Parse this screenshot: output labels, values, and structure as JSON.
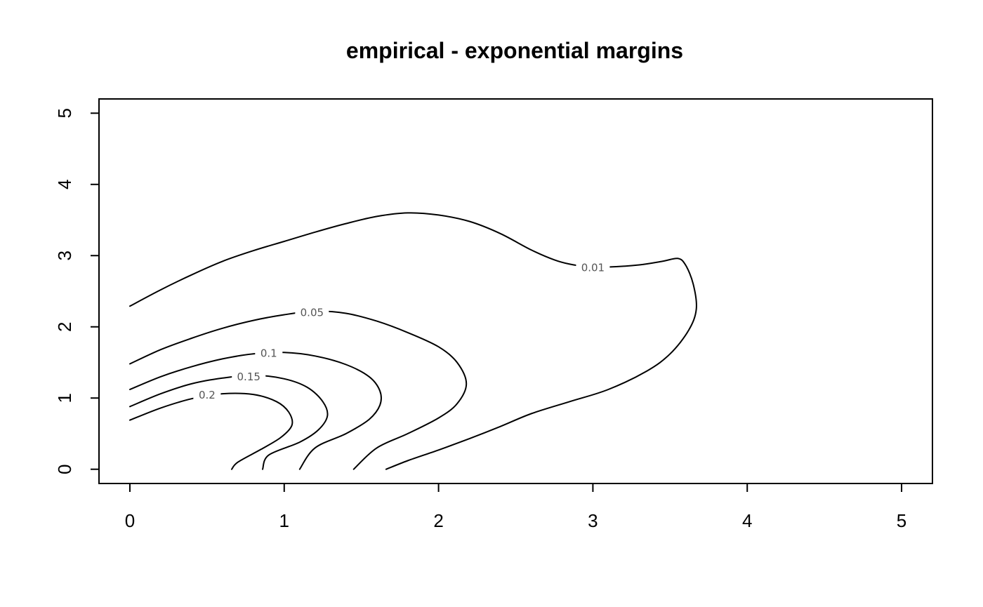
{
  "chart_data": {
    "type": "contour",
    "title": "empirical - exponential margins",
    "xlabel": "",
    "ylabel": "",
    "xlim": [
      -0.2,
      5.2
    ],
    "ylim": [
      -0.2,
      5.2
    ],
    "x_ticks": [
      0,
      1,
      2,
      3,
      4,
      5
    ],
    "y_ticks": [
      0,
      1,
      2,
      3,
      4,
      5
    ],
    "grid": false,
    "contours": [
      {
        "level": "0.01",
        "label_at": [
          3.0,
          2.83
        ],
        "points": [
          [
            0,
            2.29
          ],
          [
            0.2,
            2.52
          ],
          [
            0.4,
            2.73
          ],
          [
            0.6,
            2.92
          ],
          [
            0.8,
            3.07
          ],
          [
            1.0,
            3.2
          ],
          [
            1.2,
            3.33
          ],
          [
            1.4,
            3.45
          ],
          [
            1.6,
            3.55
          ],
          [
            1.8,
            3.6
          ],
          [
            2.0,
            3.57
          ],
          [
            2.2,
            3.48
          ],
          [
            2.4,
            3.31
          ],
          [
            2.6,
            3.08
          ],
          [
            2.75,
            2.94
          ],
          [
            2.85,
            2.88
          ],
          [
            2.95,
            2.85
          ],
          [
            3.1,
            2.84
          ],
          [
            3.3,
            2.87
          ],
          [
            3.45,
            2.92
          ],
          [
            3.55,
            2.96
          ],
          [
            3.6,
            2.87
          ],
          [
            3.65,
            2.6
          ],
          [
            3.67,
            2.25
          ],
          [
            3.62,
            1.95
          ],
          [
            3.5,
            1.62
          ],
          [
            3.35,
            1.38
          ],
          [
            3.1,
            1.12
          ],
          [
            2.85,
            0.95
          ],
          [
            2.6,
            0.78
          ],
          [
            2.4,
            0.6
          ],
          [
            2.2,
            0.43
          ],
          [
            2.0,
            0.27
          ],
          [
            1.8,
            0.12
          ],
          [
            1.66,
            0.0
          ]
        ]
      },
      {
        "level": "0.05",
        "label_at": [
          1.18,
          2.2
        ],
        "points": [
          [
            0,
            1.48
          ],
          [
            0.2,
            1.68
          ],
          [
            0.4,
            1.84
          ],
          [
            0.6,
            1.98
          ],
          [
            0.8,
            2.09
          ],
          [
            1.0,
            2.17
          ],
          [
            1.2,
            2.22
          ],
          [
            1.4,
            2.19
          ],
          [
            1.6,
            2.08
          ],
          [
            1.8,
            1.92
          ],
          [
            2.0,
            1.72
          ],
          [
            2.12,
            1.5
          ],
          [
            2.18,
            1.2
          ],
          [
            2.12,
            0.92
          ],
          [
            2.0,
            0.72
          ],
          [
            1.8,
            0.5
          ],
          [
            1.6,
            0.3
          ],
          [
            1.45,
            0.0
          ]
        ]
      },
      {
        "level": "0.1",
        "label_at": [
          0.9,
          1.63
        ],
        "points": [
          [
            0,
            1.12
          ],
          [
            0.2,
            1.3
          ],
          [
            0.4,
            1.44
          ],
          [
            0.6,
            1.55
          ],
          [
            0.8,
            1.62
          ],
          [
            1.0,
            1.64
          ],
          [
            1.2,
            1.59
          ],
          [
            1.4,
            1.47
          ],
          [
            1.55,
            1.3
          ],
          [
            1.62,
            1.1
          ],
          [
            1.62,
            0.9
          ],
          [
            1.55,
            0.7
          ],
          [
            1.4,
            0.5
          ],
          [
            1.2,
            0.3
          ],
          [
            1.1,
            0.0
          ]
        ]
      },
      {
        "level": "0.15",
        "label_at": [
          0.77,
          1.3
        ],
        "points": [
          [
            0,
            0.88
          ],
          [
            0.2,
            1.06
          ],
          [
            0.4,
            1.2
          ],
          [
            0.6,
            1.28
          ],
          [
            0.8,
            1.32
          ],
          [
            1.0,
            1.27
          ],
          [
            1.15,
            1.15
          ],
          [
            1.25,
            0.95
          ],
          [
            1.28,
            0.75
          ],
          [
            1.22,
            0.55
          ],
          [
            1.1,
            0.38
          ],
          [
            0.9,
            0.2
          ],
          [
            0.86,
            0.0
          ]
        ]
      },
      {
        "level": "0.2",
        "label_at": [
          0.5,
          1.04
        ],
        "points": [
          [
            0,
            0.69
          ],
          [
            0.2,
            0.86
          ],
          [
            0.4,
            0.99
          ],
          [
            0.6,
            1.06
          ],
          [
            0.8,
            1.05
          ],
          [
            0.95,
            0.95
          ],
          [
            1.03,
            0.8
          ],
          [
            1.05,
            0.62
          ],
          [
            0.98,
            0.45
          ],
          [
            0.85,
            0.28
          ],
          [
            0.7,
            0.1
          ],
          [
            0.66,
            0.0
          ]
        ]
      }
    ]
  }
}
